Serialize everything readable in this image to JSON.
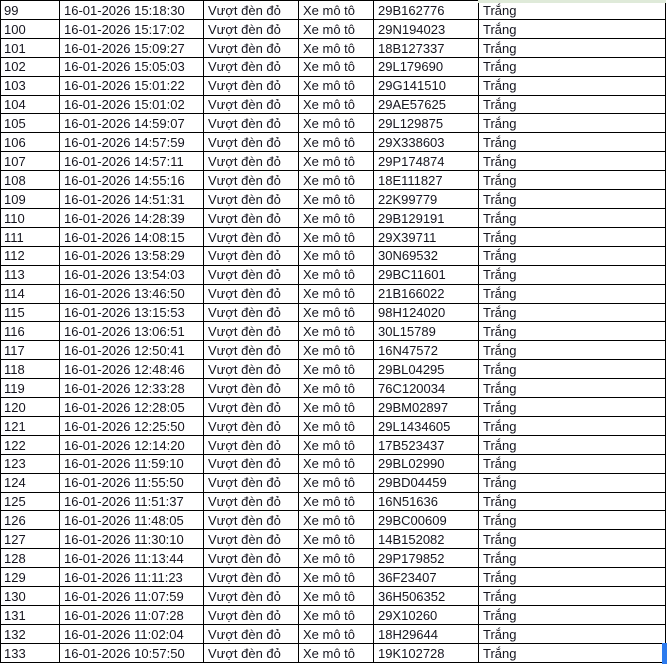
{
  "colors": {
    "cell_border": "#000000",
    "text": "#15151f",
    "background": "#ffffff",
    "selection_handle_blue": "#2d7bee",
    "top_row_sliver_green": "#dfead9"
  },
  "table": {
    "rows": [
      {
        "no": "99",
        "datetime": "16-01-2026 15:18:30",
        "violation": "Vượt đèn đỏ",
        "vehicle": "Xe mô tô",
        "plate": "29B162776",
        "color": "Trắng"
      },
      {
        "no": "100",
        "datetime": "16-01-2026 15:17:02",
        "violation": "Vượt đèn đỏ",
        "vehicle": "Xe mô tô",
        "plate": "29N194023",
        "color": "Trắng"
      },
      {
        "no": "101",
        "datetime": "16-01-2026 15:09:27",
        "violation": "Vượt đèn đỏ",
        "vehicle": "Xe mô tô",
        "plate": "18B127337",
        "color": "Trắng"
      },
      {
        "no": "102",
        "datetime": "16-01-2026 15:05:03",
        "violation": "Vượt đèn đỏ",
        "vehicle": "Xe mô tô",
        "plate": "29L179690",
        "color": "Trắng"
      },
      {
        "no": "103",
        "datetime": "16-01-2026 15:01:22",
        "violation": "Vượt đèn đỏ",
        "vehicle": "Xe mô tô",
        "plate": "29G141510",
        "color": "Trắng"
      },
      {
        "no": "104",
        "datetime": "16-01-2026 15:01:02",
        "violation": "Vượt đèn đỏ",
        "vehicle": "Xe mô tô",
        "plate": "29AE57625",
        "color": "Trắng"
      },
      {
        "no": "105",
        "datetime": "16-01-2026 14:59:07",
        "violation": "Vượt đèn đỏ",
        "vehicle": "Xe mô tô",
        "plate": "29L129875",
        "color": "Trắng"
      },
      {
        "no": "106",
        "datetime": "16-01-2026 14:57:59",
        "violation": "Vượt đèn đỏ",
        "vehicle": "Xe mô tô",
        "plate": "29X338603",
        "color": "Trắng"
      },
      {
        "no": "107",
        "datetime": "16-01-2026 14:57:11",
        "violation": "Vượt đèn đỏ",
        "vehicle": "Xe mô tô",
        "plate": "29P174874",
        "color": "Trắng"
      },
      {
        "no": "108",
        "datetime": "16-01-2026 14:55:16",
        "violation": "Vượt đèn đỏ",
        "vehicle": "Xe mô tô",
        "plate": "18E111827",
        "color": "Trắng"
      },
      {
        "no": "109",
        "datetime": "16-01-2026 14:51:31",
        "violation": "Vượt đèn đỏ",
        "vehicle": "Xe mô tô",
        "plate": "22K99779",
        "color": "Trắng"
      },
      {
        "no": "110",
        "datetime": "16-01-2026 14:28:39",
        "violation": "Vượt đèn đỏ",
        "vehicle": "Xe mô tô",
        "plate": "29B129191",
        "color": "Trắng"
      },
      {
        "no": "111",
        "datetime": "16-01-2026 14:08:15",
        "violation": "Vượt đèn đỏ",
        "vehicle": "Xe mô tô",
        "plate": "29X39711",
        "color": "Trắng"
      },
      {
        "no": "112",
        "datetime": "16-01-2026 13:58:29",
        "violation": "Vượt đèn đỏ",
        "vehicle": "Xe mô tô",
        "plate": "30N69532",
        "color": "Trắng"
      },
      {
        "no": "113",
        "datetime": "16-01-2026 13:54:03",
        "violation": "Vượt đèn đỏ",
        "vehicle": "Xe mô tô",
        "plate": "29BC11601",
        "color": "Trắng"
      },
      {
        "no": "114",
        "datetime": "16-01-2026 13:46:50",
        "violation": "Vượt đèn đỏ",
        "vehicle": "Xe mô tô",
        "plate": "21B166022",
        "color": "Trắng"
      },
      {
        "no": "115",
        "datetime": "16-01-2026 13:15:53",
        "violation": "Vượt đèn đỏ",
        "vehicle": "Xe mô tô",
        "plate": "98H124020",
        "color": "Trắng"
      },
      {
        "no": "116",
        "datetime": "16-01-2026 13:06:51",
        "violation": "Vượt đèn đỏ",
        "vehicle": "Xe mô tô",
        "plate": "30L15789",
        "color": "Trắng"
      },
      {
        "no": "117",
        "datetime": "16-01-2026 12:50:41",
        "violation": "Vượt đèn đỏ",
        "vehicle": "Xe mô tô",
        "plate": "16N47572",
        "color": "Trắng"
      },
      {
        "no": "118",
        "datetime": "16-01-2026 12:48:46",
        "violation": "Vượt đèn đỏ",
        "vehicle": "Xe mô tô",
        "plate": "29BL04295",
        "color": "Trắng"
      },
      {
        "no": "119",
        "datetime": "16-01-2026 12:33:28",
        "violation": "Vượt đèn đỏ",
        "vehicle": "Xe mô tô",
        "plate": "76C120034",
        "color": "Trắng"
      },
      {
        "no": "120",
        "datetime": "16-01-2026 12:28:05",
        "violation": "Vượt đèn đỏ",
        "vehicle": "Xe mô tô",
        "plate": "29BM02897",
        "color": "Trắng"
      },
      {
        "no": "121",
        "datetime": "16-01-2026 12:25:50",
        "violation": "Vượt đèn đỏ",
        "vehicle": "Xe mô tô",
        "plate": "29L1434605",
        "color": "Trắng"
      },
      {
        "no": "122",
        "datetime": "16-01-2026 12:14:20",
        "violation": "Vượt đèn đỏ",
        "vehicle": "Xe mô tô",
        "plate": "17B523437",
        "color": "Trắng"
      },
      {
        "no": "123",
        "datetime": "16-01-2026 11:59:10",
        "violation": "Vượt đèn đỏ",
        "vehicle": "Xe mô tô",
        "plate": "29BL02990",
        "color": "Trắng"
      },
      {
        "no": "124",
        "datetime": "16-01-2026 11:55:50",
        "violation": "Vượt đèn đỏ",
        "vehicle": "Xe mô tô",
        "plate": "29BD04459",
        "color": "Trắng"
      },
      {
        "no": "125",
        "datetime": "16-01-2026 11:51:37",
        "violation": "Vượt đèn đỏ",
        "vehicle": "Xe mô tô",
        "plate": "16N51636",
        "color": "Trắng"
      },
      {
        "no": "126",
        "datetime": "16-01-2026 11:48:05",
        "violation": "Vượt đèn đỏ",
        "vehicle": "Xe mô tô",
        "plate": "29BC00609",
        "color": "Trắng"
      },
      {
        "no": "127",
        "datetime": "16-01-2026 11:30:10",
        "violation": "Vượt đèn đỏ",
        "vehicle": "Xe mô tô",
        "plate": "14B152082",
        "color": "Trắng"
      },
      {
        "no": "128",
        "datetime": "16-01-2026 11:13:44",
        "violation": "Vượt đèn đỏ",
        "vehicle": "Xe mô tô",
        "plate": "29P179852",
        "color": "Trắng"
      },
      {
        "no": "129",
        "datetime": "16-01-2026 11:11:23",
        "violation": "Vượt đèn đỏ",
        "vehicle": "Xe mô tô",
        "plate": "36F23407",
        "color": "Trắng"
      },
      {
        "no": "130",
        "datetime": "16-01-2026 11:07:59",
        "violation": "Vượt đèn đỏ",
        "vehicle": "Xe mô tô",
        "plate": "36H506352",
        "color": "Trắng"
      },
      {
        "no": "131",
        "datetime": "16-01-2026 11:07:28",
        "violation": "Vượt đèn đỏ",
        "vehicle": "Xe mô tô",
        "plate": "29X10260",
        "color": "Trắng"
      },
      {
        "no": "132",
        "datetime": "16-01-2026 11:02:04",
        "violation": "Vượt đèn đỏ",
        "vehicle": "Xe mô tô",
        "plate": "18H29644",
        "color": "Trắng"
      },
      {
        "no": "133",
        "datetime": "16-01-2026 10:57:50",
        "violation": "Vượt đèn đỏ",
        "vehicle": "Xe mô tô",
        "plate": "19K102728",
        "color": "Trắng"
      }
    ]
  }
}
